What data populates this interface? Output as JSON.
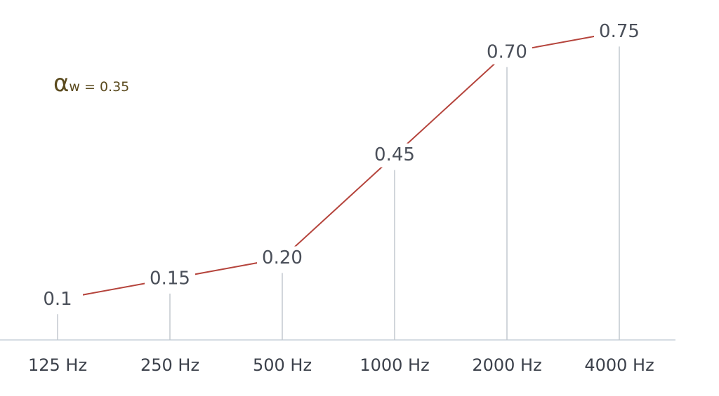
{
  "chart_data": {
    "type": "line",
    "categories": [
      "125 Hz",
      "250 Hz",
      "500 Hz",
      "1000 Hz",
      "2000 Hz",
      "4000 Hz"
    ],
    "values": [
      0.1,
      0.15,
      0.2,
      0.45,
      0.7,
      0.75
    ],
    "value_labels": [
      "0.1",
      "0.15",
      "0.20",
      "0.45",
      "0.70",
      "0.75"
    ],
    "color": "#b5443c",
    "ylim": [
      0,
      0.8
    ],
    "annotation": {
      "symbol": "α",
      "text": "w = 0.35"
    }
  }
}
